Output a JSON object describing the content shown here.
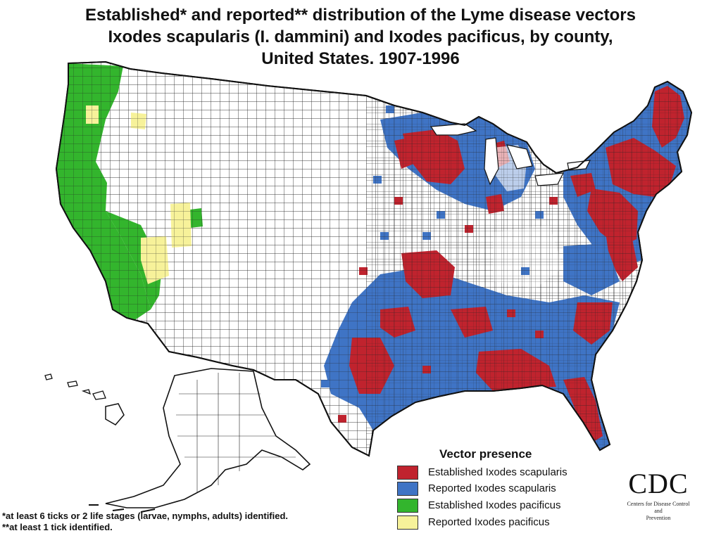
{
  "title": {
    "line1": "Established* and reported** distribution of the Lyme disease vectors",
    "line2": "Ixodes scapularis (I. dammini) and Ixodes pacificus, by county,",
    "line3": "United States. 1907-1996"
  },
  "legend": {
    "title": "Vector presence",
    "items": [
      {
        "label": "Established Ixodes scapularis",
        "color": "#c0232e"
      },
      {
        "label": "Reported Ixodes scapularis",
        "color": "#3f74c5"
      },
      {
        "label": "Established Ixodes pacificus",
        "color": "#33b52d"
      },
      {
        "label": "Reported Ixodes pacificus",
        "color": "#f7f29a"
      }
    ]
  },
  "footnotes": {
    "established": "*at least 6 ticks or 2 life stages (larvae, nymphs, adults) identified.",
    "reported": "**at least 1 tick identified."
  },
  "logo": {
    "text": "CDC",
    "subtitle_line1": "Centers for Disease Control",
    "subtitle_line2": "and",
    "subtitle_line3": "Prevention"
  }
}
